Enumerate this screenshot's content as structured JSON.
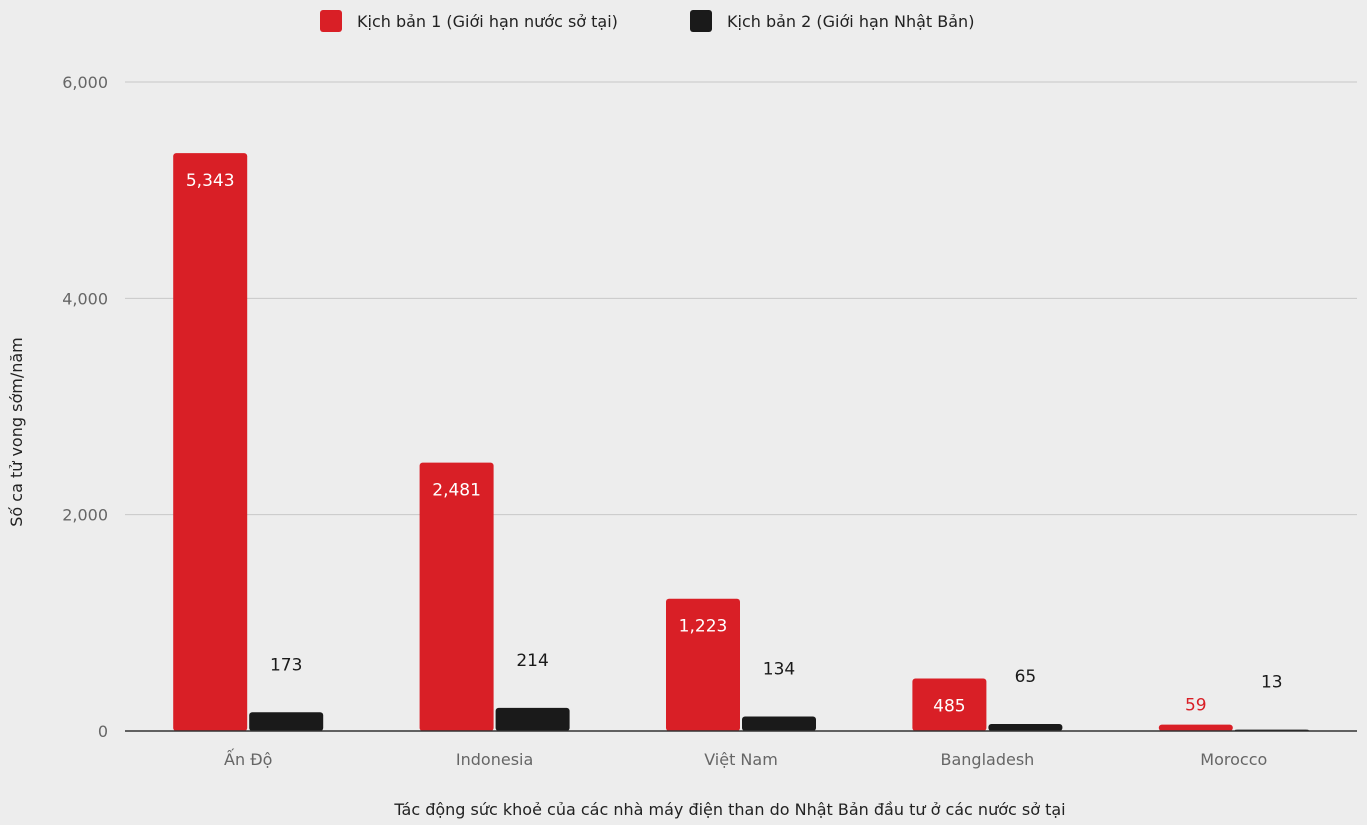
{
  "chart_data": {
    "type": "bar",
    "categories": [
      "Ấn Độ",
      "Indonesia",
      "Việt Nam",
      "Bangladesh",
      "Morocco"
    ],
    "series": [
      {
        "name": "Kịch bản 1 (Giới hạn nước sở tại)",
        "values": [
          5343,
          2481,
          1223,
          485,
          59
        ],
        "labels": [
          "5,343",
          "2,481",
          "1,223",
          "485",
          "59"
        ],
        "color": "#d91f26"
      },
      {
        "name": "Kịch bản 2 (Giới hạn Nhật Bản)",
        "values": [
          173,
          214,
          134,
          65,
          13
        ],
        "labels": [
          "173",
          "214",
          "134",
          "65",
          "13"
        ],
        "color": "#1a1a1a"
      }
    ],
    "xlabel": "Tác động sức khoẻ của các nhà máy điện than do Nhật Bản đầu tư ở các nước sở tại",
    "ylabel": "Số ca tử vong sớm/năm",
    "ylim": [
      0,
      6000
    ],
    "yticks": [
      0,
      2000,
      4000,
      6000
    ],
    "ytick_labels": [
      "0",
      "2,000",
      "4,000",
      "6,000"
    ],
    "grid": true,
    "legend_position": "top-center",
    "colors": {
      "background": "#ededed",
      "grid": "#c8c8c8",
      "baseline": "#333333",
      "label_on_bar": "#ffffff",
      "label_above_dark": "#1a1a1a",
      "label_above_red": "#d91f26"
    }
  }
}
